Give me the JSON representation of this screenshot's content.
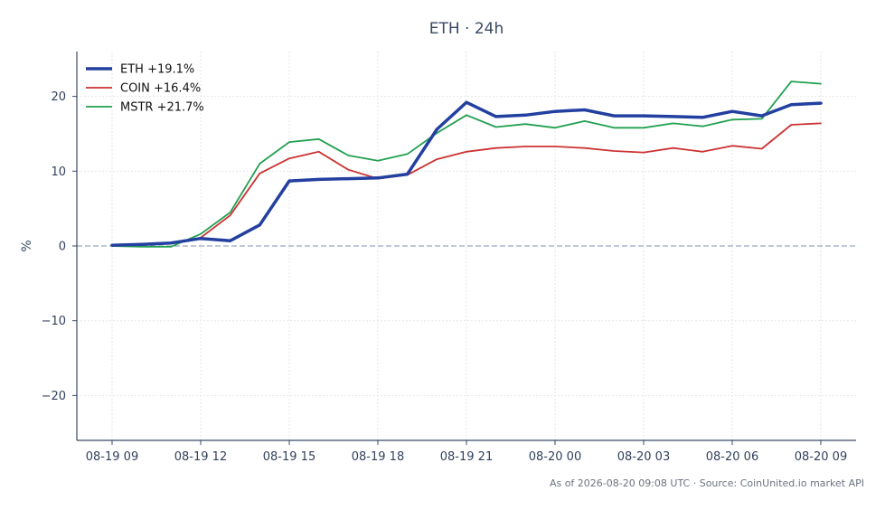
{
  "chart_data": {
    "type": "line",
    "title": "ETH · 24h",
    "ylabel": "%",
    "xlabel": "",
    "ylim": [
      -26,
      26
    ],
    "yticks": [
      -20,
      -10,
      0,
      10,
      20
    ],
    "ytick_labels": [
      "−20",
      "−10",
      "0",
      "10",
      "20"
    ],
    "xticks": [
      0,
      3,
      6,
      9,
      12,
      15,
      18,
      21,
      24
    ],
    "xtick_labels": [
      "08-19 09",
      "08-19 12",
      "08-19 15",
      "08-19 18",
      "08-19 21",
      "08-20 00",
      "08-20 03",
      "08-20 06",
      "08-20 09"
    ],
    "x": [
      "08-19 09",
      "08-19 10",
      "08-19 11",
      "08-19 12",
      "08-19 13",
      "08-19 14",
      "08-19 15",
      "08-19 16",
      "08-19 17",
      "08-19 18",
      "08-19 19",
      "08-19 20",
      "08-19 21",
      "08-19 22",
      "08-19 23",
      "08-20 00",
      "08-20 01",
      "08-20 02",
      "08-20 03",
      "08-20 04",
      "08-20 05",
      "08-20 06",
      "08-20 07",
      "08-20 08",
      "08-20 09"
    ],
    "grid": true,
    "zero_line": true,
    "legend_position": "top-left",
    "series": [
      {
        "name": "ETH +19.1%",
        "color": "#2340a0",
        "values": [
          0.1,
          0.2,
          0.4,
          1.0,
          0.7,
          2.8,
          8.7,
          8.9,
          9.0,
          9.1,
          9.6,
          15.6,
          19.2,
          17.3,
          17.5,
          18.0,
          18.2,
          17.4,
          17.4,
          17.3,
          17.2,
          18.0,
          17.4,
          18.9,
          19.1
        ]
      },
      {
        "name": "COIN +16.4%",
        "color": "#cc3333",
        "values": [
          0.1,
          0.2,
          0.3,
          1.1,
          4.1,
          9.7,
          11.7,
          12.6,
          10.2,
          9.0,
          9.5,
          11.6,
          12.6,
          13.1,
          13.3,
          13.3,
          13.1,
          12.7,
          12.5,
          13.1,
          12.6,
          13.4,
          13.0,
          16.2,
          16.4
        ]
      },
      {
        "name": "MSTR +21.7%",
        "color": "#22a050",
        "values": [
          0.0,
          -0.1,
          -0.1,
          1.6,
          4.5,
          11.0,
          13.9,
          14.3,
          12.1,
          11.4,
          12.3,
          15.1,
          17.5,
          15.9,
          16.3,
          15.8,
          16.7,
          15.8,
          15.8,
          16.4,
          16.0,
          16.9,
          17.0,
          22.0,
          21.7
        ]
      }
    ],
    "footnote": "As of 2026-08-20 09:08 UTC · Source: CoinUnited.io market API"
  }
}
